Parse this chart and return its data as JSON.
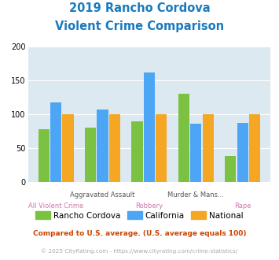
{
  "title_line1": "2019 Rancho Cordova",
  "title_line2": "Violent Crime Comparison",
  "title_color": "#1a7abf",
  "categories": [
    "All Violent Crime",
    "Aggravated Assault",
    "Robbery",
    "Murder & Mans...",
    "Rape"
  ],
  "rancho_cordova": [
    78,
    80,
    90,
    130,
    38
  ],
  "california": [
    118,
    107,
    162,
    86,
    87
  ],
  "national": [
    100,
    100,
    100,
    100,
    100
  ],
  "color_rancho": "#7bc242",
  "color_california": "#4da6f5",
  "color_national": "#f5a623",
  "ylim": [
    0,
    200
  ],
  "yticks": [
    0,
    50,
    100,
    150,
    200
  ],
  "background_color": "#dce9f0",
  "legend_labels": [
    "Rancho Cordova",
    "California",
    "National"
  ],
  "row1_indices": [
    1,
    3
  ],
  "row2_indices": [
    0,
    2,
    4
  ],
  "row1_color": "#555555",
  "row2_color": "#cc77aa",
  "footnote1": "Compared to U.S. average. (U.S. average equals 100)",
  "footnote2": "© 2025 CityRating.com - https://www.cityrating.com/crime-statistics/",
  "footnote1_color": "#cc4400",
  "footnote2_color": "#aaaaaa",
  "footnote2_link_color": "#4da6f5"
}
